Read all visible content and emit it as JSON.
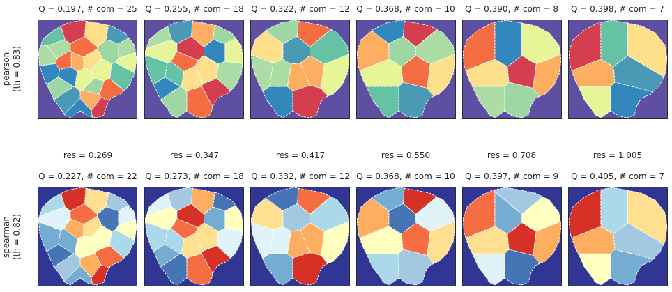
{
  "chart_data": {
    "type": "heatmap",
    "rows": [
      {
        "label_lines": [
          "pearson",
          "(th = 0.83)"
        ],
        "background": "#5e4fa2",
        "palette": [
          "#3288bd",
          "#66c2a5",
          "#abdda4",
          "#e6f598",
          "#fee08b",
          "#fdae61",
          "#f46d43",
          "#d53e4f",
          "#4a9ab5",
          "#9ed7a3"
        ],
        "panels": [
          {
            "title": "Q = 0.197,  # com = 25",
            "Q": 0.197,
            "communities": 25
          },
          {
            "title": "Q = 0.255,  # com = 18",
            "Q": 0.255,
            "communities": 18
          },
          {
            "title": "Q = 0.322,  # com = 12",
            "Q": 0.322,
            "communities": 12
          },
          {
            "title": "Q = 0.368,  # com = 10",
            "Q": 0.368,
            "communities": 10
          },
          {
            "title": "Q = 0.390,  # com = 8",
            "Q": 0.39,
            "communities": 8
          },
          {
            "title": "Q = 0.398,  # com = 7",
            "Q": 0.398,
            "communities": 7
          }
        ]
      },
      {
        "label_lines": [
          "spearman",
          "(th = 0.82)"
        ],
        "background": "#313695",
        "palette": [
          "#4575b4",
          "#74add1",
          "#abd9e9",
          "#e0f3f8",
          "#ffffbf",
          "#fee090",
          "#fdae61",
          "#f46d43",
          "#d73027",
          "#a5c8e1"
        ],
        "panels": [
          {
            "title": "Q = 0.227,  # com = 22",
            "Q": 0.227,
            "communities": 22
          },
          {
            "title": "Q = 0.273,  # com = 18",
            "Q": 0.273,
            "communities": 18
          },
          {
            "title": "Q = 0.332,  # com = 12",
            "Q": 0.332,
            "communities": 12
          },
          {
            "title": "Q = 0.368,  # com = 10",
            "Q": 0.368,
            "communities": 10
          },
          {
            "title": "Q = 0.397,  # com = 9",
            "Q": 0.397,
            "communities": 9
          },
          {
            "title": "Q = 0.405,  # com = 7",
            "Q": 0.405,
            "communities": 7
          }
        ]
      }
    ],
    "resolutions": [
      {
        "label": "res = 0.269",
        "value": 0.269
      },
      {
        "label": "res = 0.347",
        "value": 0.347
      },
      {
        "label": "res = 0.417",
        "value": 0.417
      },
      {
        "label": "res = 0.550",
        "value": 0.55
      },
      {
        "label": "res = 0.708",
        "value": 0.708
      },
      {
        "label": "res = 1.005",
        "value": 1.005
      }
    ]
  }
}
